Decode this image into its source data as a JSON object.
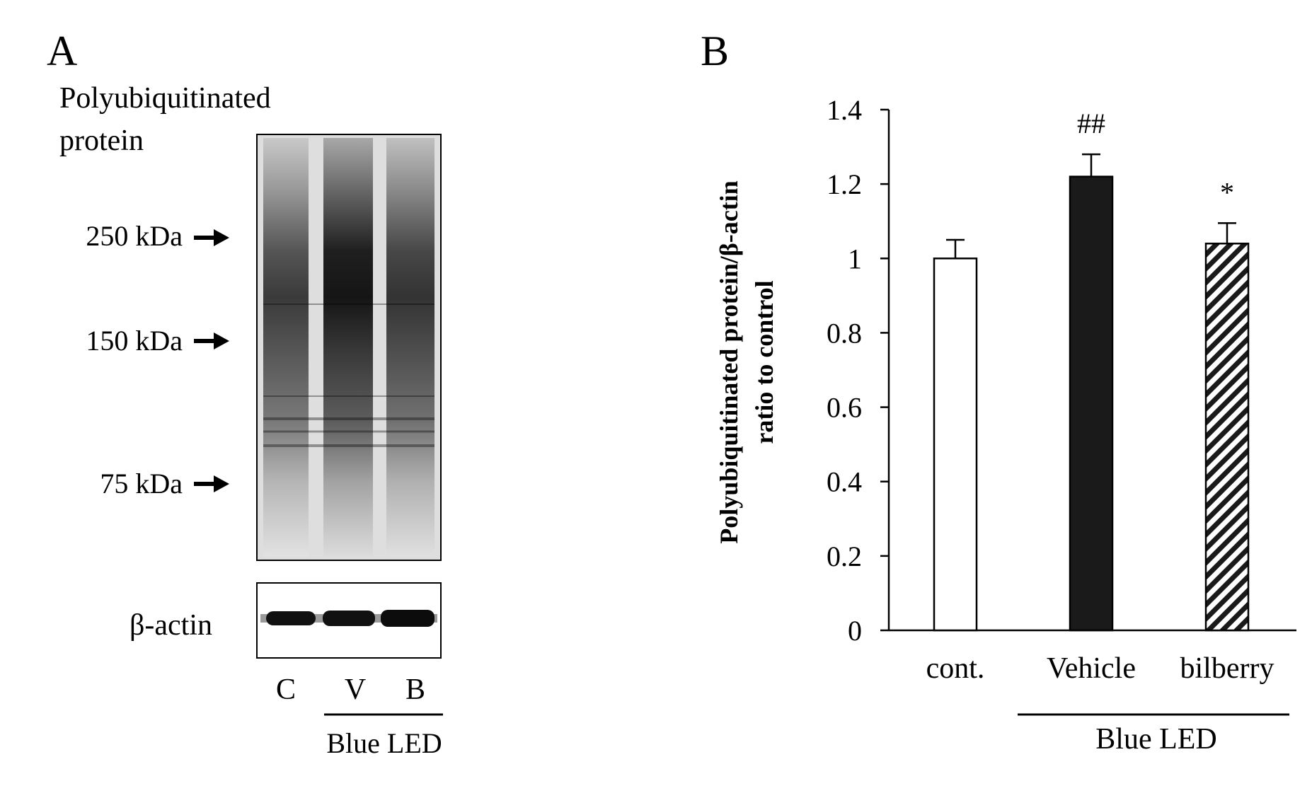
{
  "panel_a": {
    "label": "A",
    "blot_title_line1": "Polyubiquitinated",
    "blot_title_line2": "protein",
    "markers": [
      "250 kDa",
      "150 kDa",
      "75 kDa"
    ],
    "loading_control": "β-actin",
    "lanes": [
      "C",
      "V",
      "B"
    ],
    "group_label": "Blue LED"
  },
  "panel_b": {
    "label": "B",
    "chart_data": {
      "type": "bar",
      "categories": [
        "cont.",
        "Vehicle",
        "bilberry"
      ],
      "values": [
        1.0,
        1.22,
        1.04
      ],
      "errors": [
        0.05,
        0.06,
        0.055
      ],
      "bar_fills": [
        "white",
        "black",
        "diagonal-hatch"
      ],
      "annotations": [
        "",
        "##",
        "*"
      ],
      "title": "",
      "xlabel": "",
      "ylabel_line1": "Polyubiquitinated protein/β-actin",
      "ylabel_line2": "ratio to control",
      "ylim": [
        0,
        1.4
      ],
      "yticks": [
        "0",
        "0.2",
        "0.4",
        "0.6",
        "0.8",
        "1",
        "1.2",
        "1.4"
      ],
      "group_label": "Blue LED",
      "group_members": [
        "Vehicle",
        "bilberry"
      ],
      "grid": false,
      "legend": "none"
    }
  },
  "colors": {
    "ink": "#000000",
    "bar_dark": "#1a1a1a",
    "background": "#ffffff"
  }
}
